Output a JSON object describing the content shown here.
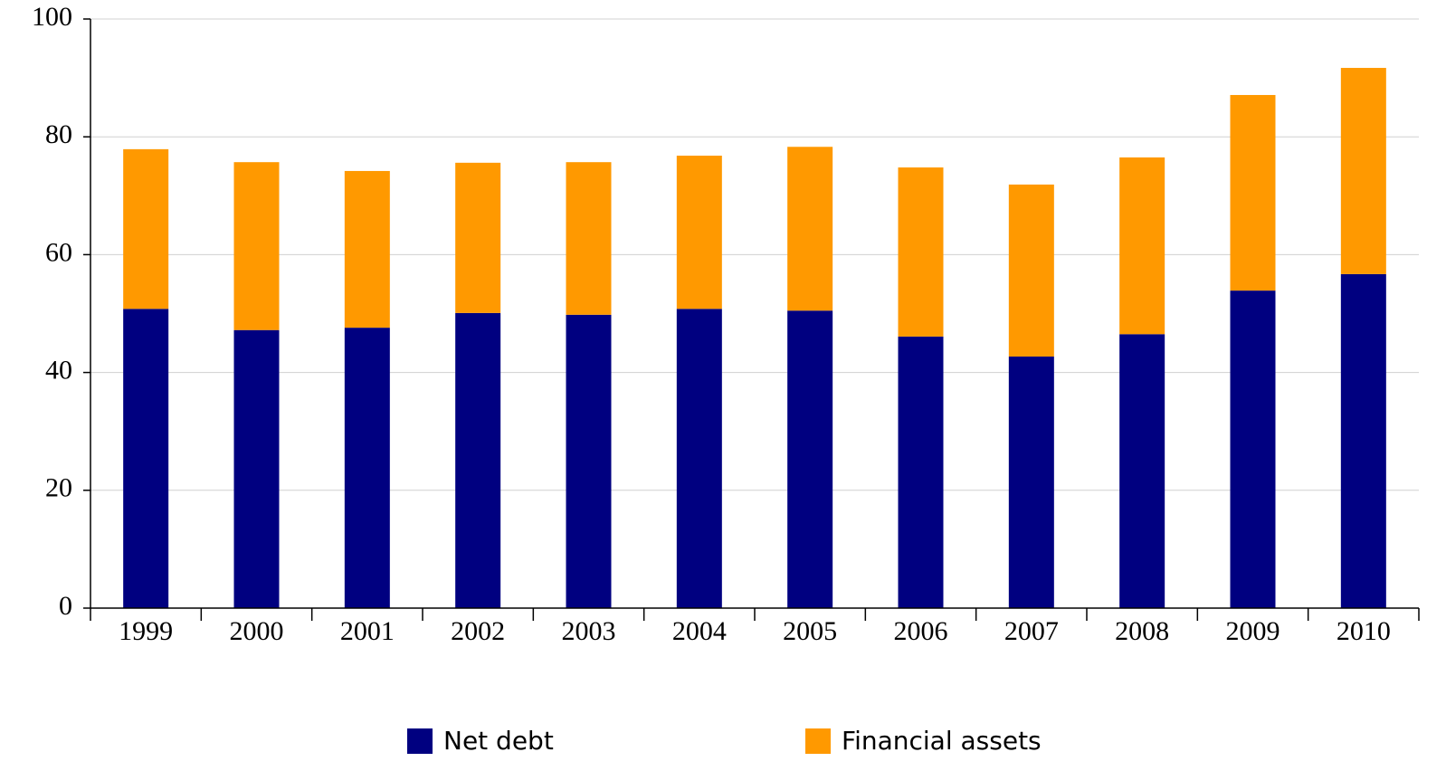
{
  "chart_data": {
    "type": "bar",
    "stacked": true,
    "categories": [
      "1999",
      "2000",
      "2001",
      "2002",
      "2003",
      "2004",
      "2005",
      "2006",
      "2007",
      "2008",
      "2009",
      "2010"
    ],
    "series": [
      {
        "name": "Net debt",
        "color": "#000080",
        "values": [
          50.8,
          47.2,
          47.6,
          50.1,
          49.8,
          50.8,
          50.5,
          46.1,
          42.7,
          46.5,
          53.9,
          56.7
        ]
      },
      {
        "name": "Financial assets",
        "color": "#ff9900",
        "values": [
          27.1,
          28.5,
          26.6,
          25.5,
          25.9,
          26.0,
          27.8,
          28.7,
          29.2,
          30.0,
          33.2,
          35.0
        ]
      }
    ],
    "ylim": [
      0,
      100
    ],
    "yticks": [
      0,
      20,
      40,
      60,
      80,
      100
    ],
    "grid": true,
    "legend": "bottom"
  }
}
